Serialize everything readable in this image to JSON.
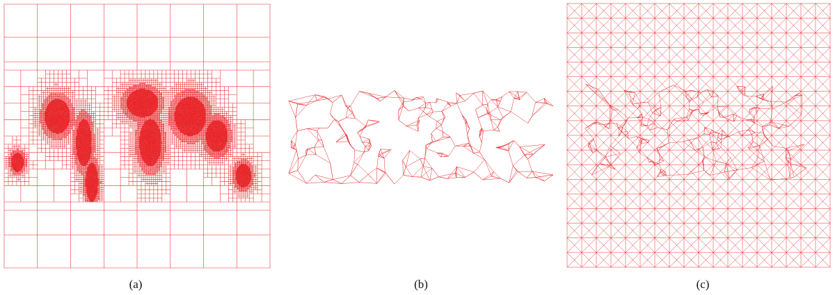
{
  "captions": {
    "a": "(a)",
    "b": "(b)",
    "c": "(c)"
  },
  "colors": {
    "mesh": "#e8262a",
    "dense": "#d40000",
    "light": "#f7c9c9",
    "background": "#ffffff"
  },
  "panels": [
    {
      "id": "a",
      "kind": "quadtree-adaptive-grid"
    },
    {
      "id": "b",
      "kind": "delaunay-triangulation"
    },
    {
      "id": "c",
      "kind": "diagonal-grid-adaptive-triangulation"
    }
  ]
}
